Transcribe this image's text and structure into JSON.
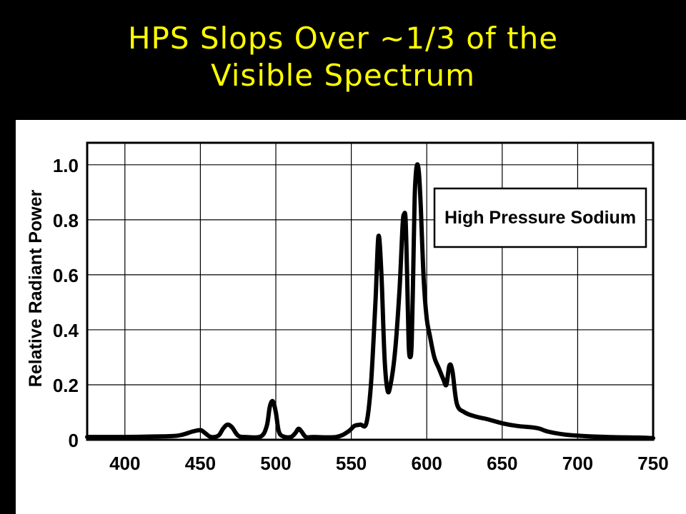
{
  "slide": {
    "title_line1": "HPS Slops Over ~1/3 of the",
    "title_line2": "Visible Spectrum"
  },
  "colors": {
    "background": "#000000",
    "title": "#ffff00",
    "panel": "#ffffff",
    "line": "#000000"
  },
  "chart_data": {
    "type": "line",
    "title": "",
    "xlabel": "",
    "ylabel": "Relative Radiant Power",
    "xlim": [
      375,
      750
    ],
    "ylim": [
      0,
      1.08
    ],
    "grid": true,
    "x_ticks": [
      400,
      450,
      500,
      550,
      600,
      650,
      700,
      750
    ],
    "x_tick_labels": [
      "400",
      "450",
      "500",
      "550",
      "600",
      "650",
      "700",
      "750"
    ],
    "y_ticks": [
      0,
      0.2,
      0.4,
      0.6,
      0.8,
      1.0
    ],
    "y_tick_labels": [
      "0",
      "0.2",
      "0.4",
      "0.6",
      "0.8",
      "1.0"
    ],
    "legend": {
      "position": "top-right",
      "entries": [
        "High Pressure Sodium"
      ]
    },
    "series": [
      {
        "name": "High Pressure Sodium",
        "x": [
          375,
          400,
          420,
          435,
          445,
          450,
          453,
          457,
          462,
          465,
          468,
          471,
          475,
          480,
          490,
          494,
          496,
          498,
          500,
          502,
          505,
          510,
          513,
          515,
          517,
          520,
          525,
          540,
          548,
          552,
          556,
          560,
          563,
          566,
          568,
          570,
          572,
          574,
          576,
          579,
          582,
          584,
          585,
          586,
          587,
          588,
          589,
          590,
          591,
          592,
          593,
          594,
          595,
          596,
          598,
          600,
          602,
          605,
          608,
          611,
          613,
          615,
          617,
          620,
          625,
          632,
          640,
          650,
          660,
          670,
          675,
          680,
          690,
          700,
          720,
          740,
          750
        ],
        "y": [
          0.01,
          0.01,
          0.012,
          0.015,
          0.03,
          0.035,
          0.025,
          0.01,
          0.015,
          0.04,
          0.055,
          0.045,
          0.015,
          0.01,
          0.012,
          0.05,
          0.12,
          0.14,
          0.1,
          0.03,
          0.012,
          0.01,
          0.025,
          0.04,
          0.03,
          0.01,
          0.01,
          0.01,
          0.03,
          0.05,
          0.055,
          0.06,
          0.2,
          0.5,
          0.74,
          0.6,
          0.3,
          0.18,
          0.2,
          0.32,
          0.55,
          0.78,
          0.82,
          0.8,
          0.6,
          0.35,
          0.3,
          0.35,
          0.6,
          0.88,
          0.98,
          1.0,
          0.96,
          0.85,
          0.58,
          0.44,
          0.38,
          0.3,
          0.26,
          0.22,
          0.2,
          0.27,
          0.25,
          0.13,
          0.1,
          0.085,
          0.075,
          0.06,
          0.05,
          0.045,
          0.04,
          0.03,
          0.02,
          0.015,
          0.01,
          0.008,
          0.006
        ]
      }
    ]
  }
}
